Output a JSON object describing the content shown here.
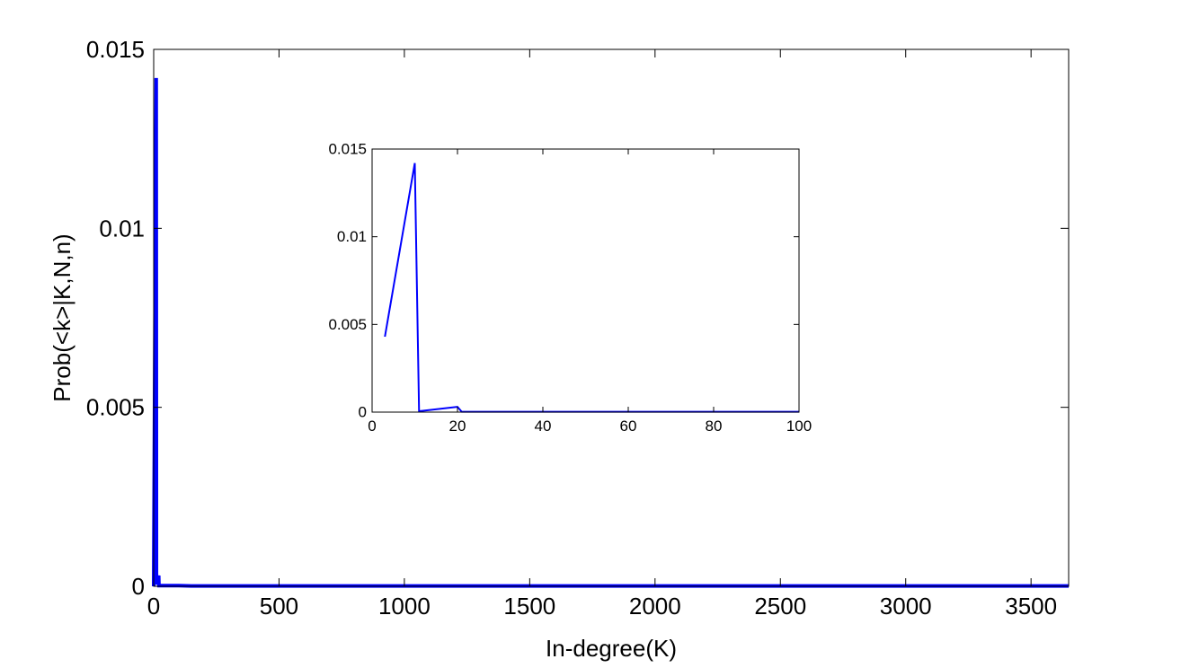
{
  "chart_data": [
    {
      "id": "main",
      "type": "line",
      "title": "",
      "xlabel": "In-degree(K)",
      "ylabel": "Prob(<k>|K,N,n)",
      "xlim": [
        0,
        3650
      ],
      "ylim": [
        0,
        0.015
      ],
      "xticks": [
        0,
        500,
        1000,
        1500,
        2000,
        2500,
        3000,
        3500
      ],
      "xtick_labels": [
        "0",
        "500",
        "1000",
        "1500",
        "2000",
        "2500",
        "3000",
        "3500"
      ],
      "yticks": [
        0,
        0.005,
        0.01,
        0.015
      ],
      "ytick_labels": [
        "0",
        "0.005",
        "0.01",
        "0.015"
      ],
      "grid": false,
      "series": [
        {
          "color": "#0000ff",
          "x": [
            0,
            3,
            10,
            11,
            20,
            21,
            40,
            100,
            150,
            3650
          ],
          "y": [
            0,
            0.0043,
            0.0142,
            5e-05,
            0.0003,
            2e-05,
            2e-05,
            2e-05,
            1e-05,
            1e-05
          ]
        }
      ]
    },
    {
      "id": "inset",
      "type": "line",
      "title": "",
      "xlabel": "",
      "ylabel": "",
      "xlim": [
        0,
        100
      ],
      "ylim": [
        0,
        0.015
      ],
      "xticks": [
        0,
        20,
        40,
        60,
        80,
        100
      ],
      "xtick_labels": [
        "0",
        "20",
        "40",
        "60",
        "80",
        "100"
      ],
      "yticks": [
        0,
        0.005,
        0.01,
        0.015
      ],
      "ytick_labels": [
        "0",
        "0.005",
        "0.01",
        "0.015"
      ],
      "grid": false,
      "series": [
        {
          "color": "#0000ff",
          "x": [
            3,
            10,
            11,
            20,
            21,
            100
          ],
          "y": [
            0.0043,
            0.0142,
            5e-05,
            0.0003,
            2e-05,
            2e-05
          ]
        }
      ]
    }
  ]
}
